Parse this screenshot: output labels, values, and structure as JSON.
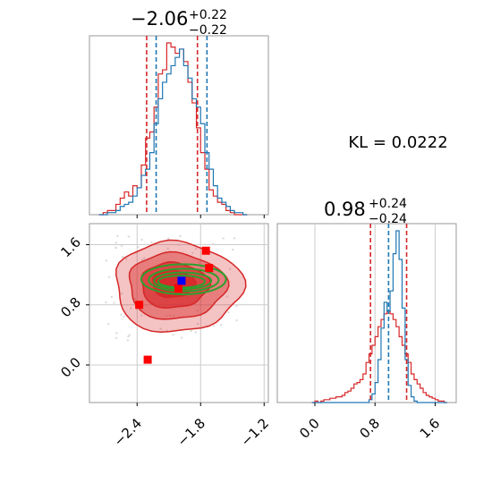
{
  "chart_data": {
    "type": "corner",
    "annotation": "KL = 0.0222",
    "colors": {
      "red": "#d62728",
      "blue": "#1f77b4",
      "green": "#2ca02c",
      "marker_blue": "#0000ff",
      "marker_red": "#ff0000"
    },
    "x_param": {
      "title_main": "−2.06",
      "title_sup": "+0.22",
      "title_sub": "−0.22",
      "range": [
        -2.85,
        -1.16
      ],
      "ticks": [
        -2.4,
        -1.8,
        -1.2
      ],
      "tick_labels": [
        "−2.4",
        "−1.8",
        "−1.2"
      ],
      "red_quantiles": [
        -2.31,
        -1.83
      ],
      "blue_quantiles": [
        -2.22,
        -1.74
      ],
      "bin_edges": [
        -2.76,
        -2.72,
        -2.68,
        -2.64,
        -2.6,
        -2.56,
        -2.52,
        -2.48,
        -2.44,
        -2.4,
        -2.36,
        -2.32,
        -2.28,
        -2.24,
        -2.2,
        -2.16,
        -2.12,
        -2.08,
        -2.04,
        -2.0,
        -1.96,
        -1.92,
        -1.88,
        -1.84,
        -1.8,
        -1.76,
        -1.72,
        -1.68,
        -1.64,
        -1.6,
        -1.56,
        -1.52,
        -1.48,
        -1.44,
        -1.4,
        -1.36
      ],
      "red_counts": [
        0,
        1,
        2,
        2,
        5,
        8,
        11,
        9,
        14,
        13,
        24,
        37,
        40,
        52,
        68,
        70,
        83,
        81,
        78,
        80,
        74,
        64,
        54,
        42,
        30,
        22,
        12,
        9,
        6,
        5,
        2,
        1,
        0,
        0,
        0
      ],
      "blue_counts": [
        0,
        0,
        1,
        1,
        2,
        4,
        5,
        6,
        9,
        13,
        19,
        22,
        30,
        44,
        56,
        64,
        68,
        72,
        76,
        80,
        72,
        66,
        56,
        52,
        44,
        30,
        22,
        14,
        8,
        6,
        4,
        2,
        1,
        1,
        0
      ]
    },
    "y_param": {
      "title_main": "0.98",
      "title_sup": "+0.24",
      "title_sub": "−0.24",
      "range": [
        -0.5,
        1.88
      ],
      "ticks": [
        0.0,
        0.8,
        1.6
      ],
      "tick_labels": [
        "0.0",
        "0.8",
        "1.6"
      ],
      "red_quantiles": [
        0.74,
        1.22
      ],
      "blue_quantiles": [
        0.98
      ],
      "bin_edges": [
        -0.04,
        0.0,
        0.04,
        0.08,
        0.12,
        0.16,
        0.2,
        0.24,
        0.28,
        0.32,
        0.36,
        0.4,
        0.44,
        0.48,
        0.52,
        0.56,
        0.6,
        0.64,
        0.68,
        0.72,
        0.76,
        0.8,
        0.84,
        0.88,
        0.92,
        0.96,
        1.0,
        1.04,
        1.08,
        1.12,
        1.16,
        1.2,
        1.24,
        1.28,
        1.32,
        1.36,
        1.4,
        1.44,
        1.48,
        1.52,
        1.56,
        1.6,
        1.64,
        1.68,
        1.72,
        1.76
      ],
      "red_counts": [
        0,
        1,
        0,
        1,
        2,
        2,
        3,
        3,
        4,
        4,
        5,
        7,
        8,
        10,
        13,
        14,
        16,
        20,
        28,
        34,
        40,
        46,
        53,
        58,
        62,
        64,
        62,
        58,
        53,
        46,
        40,
        34,
        28,
        20,
        16,
        13,
        10,
        7,
        5,
        4,
        3,
        2,
        1,
        1,
        0
      ],
      "blue_counts": [
        0,
        0,
        0,
        0,
        0,
        0,
        0,
        0,
        0,
        0,
        0,
        0,
        0,
        0,
        0,
        0,
        0,
        0,
        0,
        2,
        6,
        14,
        30,
        52,
        70,
        64,
        78,
        104,
        120,
        100,
        66,
        30,
        12,
        4,
        1,
        0,
        0,
        0,
        0,
        0,
        0,
        0,
        0,
        0,
        0
      ]
    },
    "joint": {
      "red_contours": [
        {
          "cx": -2.02,
          "cy": 1.04,
          "rx": 0.6,
          "ry": 0.6,
          "fill_opacity": 0.28
        },
        {
          "cx": -2.03,
          "cy": 1.05,
          "rx": 0.46,
          "ry": 0.44,
          "fill_opacity": 0.45
        },
        {
          "cx": -2.05,
          "cy": 1.06,
          "rx": 0.32,
          "ry": 0.3,
          "fill_opacity": 0.65
        },
        {
          "cx": -2.06,
          "cy": 1.08,
          "rx": 0.2,
          "ry": 0.18,
          "fill_opacity": 0.85
        }
      ],
      "green_contours": [
        {
          "cx": -1.96,
          "cy": 1.14,
          "rx": 0.4,
          "ry": 0.2
        },
        {
          "cx": -1.96,
          "cy": 1.13,
          "rx": 0.33,
          "ry": 0.15
        },
        {
          "cx": -1.97,
          "cy": 1.12,
          "rx": 0.27,
          "ry": 0.11
        },
        {
          "cx": -1.98,
          "cy": 1.11,
          "rx": 0.22,
          "ry": 0.08
        }
      ],
      "red_markers": [
        {
          "x": -2.3,
          "y": 0.07
        },
        {
          "x": -1.75,
          "y": 1.52
        },
        {
          "x": -1.72,
          "y": 1.29
        },
        {
          "x": -2.01,
          "y": 1.02
        },
        {
          "x": -2.38,
          "y": 0.8
        }
      ],
      "blue_marker": {
        "x": -1.98,
        "y": 1.12
      }
    }
  }
}
